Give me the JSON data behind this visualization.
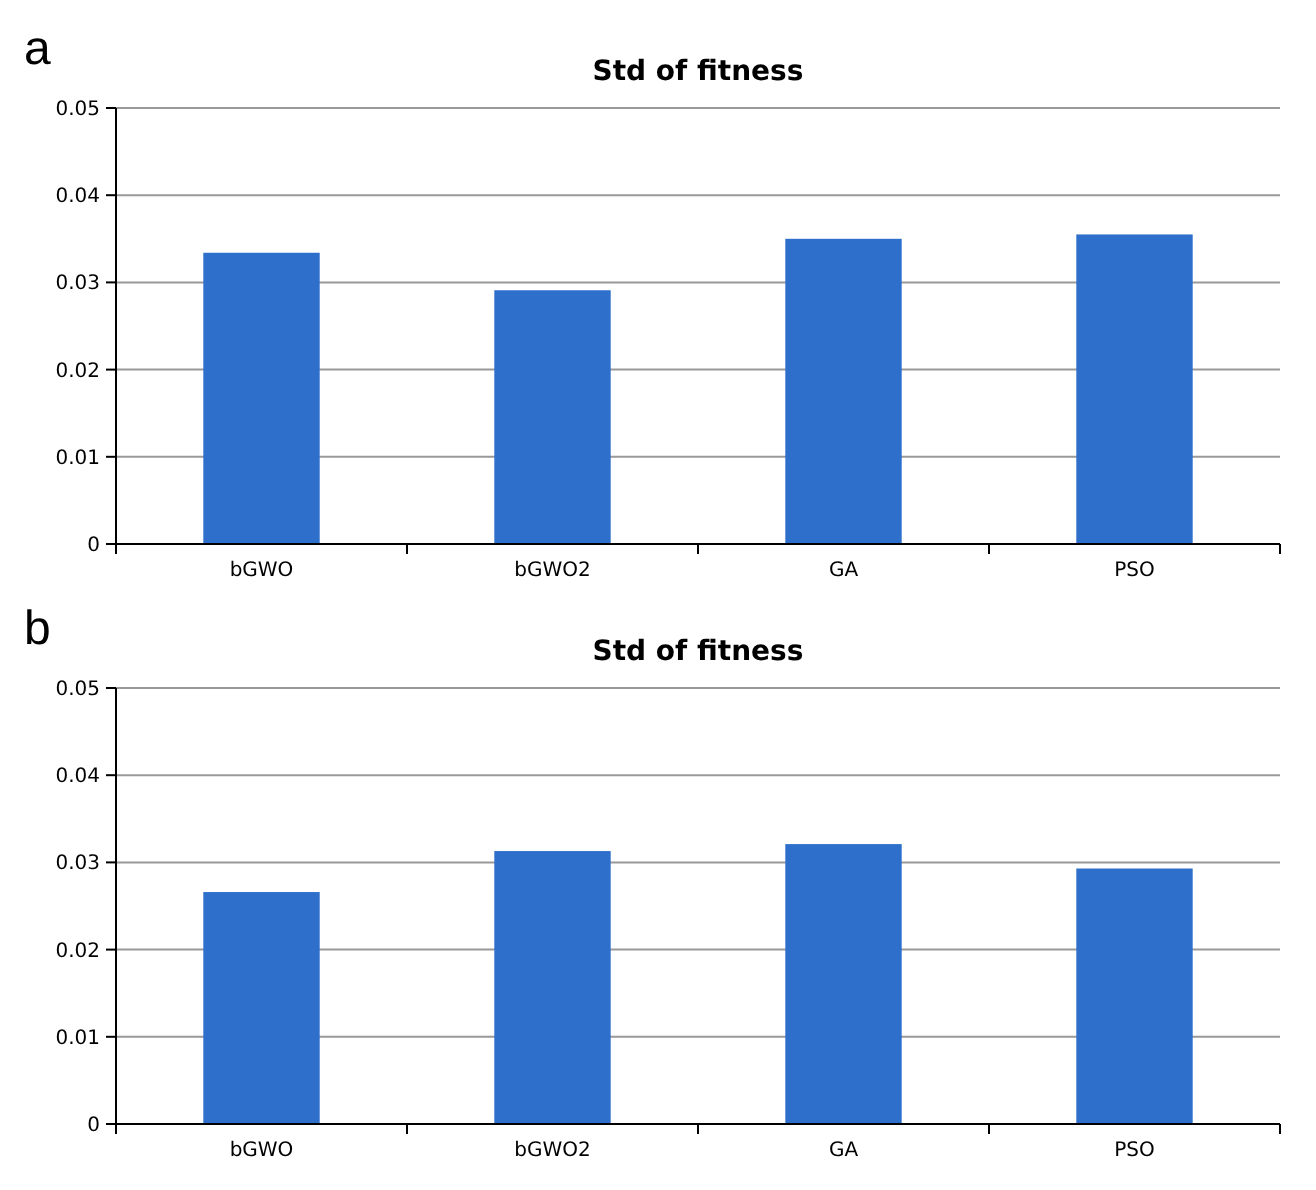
{
  "chart_data": [
    {
      "type": "bar",
      "title": "Std of fitness",
      "annotations": [
        "a"
      ],
      "categories": [
        "bGWO",
        "bGWO2",
        "GA",
        "PSO"
      ],
      "values": [
        0.0334,
        0.0291,
        0.035,
        0.0355
      ],
      "color": "#2f6fcc",
      "ylim": [
        0,
        0.05
      ],
      "yticks": [
        {
          "value": 0,
          "label": "0"
        },
        0.01,
        0.02,
        0.03,
        0.04,
        0.05
      ],
      "grid": "y"
    },
    {
      "type": "bar",
      "title": "Std of fitness",
      "annotations": [
        "b"
      ],
      "categories": [
        "bGWO",
        "bGWO2",
        "GA",
        "PSO"
      ],
      "values": [
        0.0266,
        0.0313,
        0.0321,
        0.0293
      ],
      "color": "#2f6fcc",
      "ylim": [
        0,
        0.05
      ],
      "yticks": [
        {
          "value": 0,
          "label": "0"
        },
        0.01,
        0.02,
        0.03,
        0.04,
        0.05
      ],
      "grid": "y"
    }
  ]
}
